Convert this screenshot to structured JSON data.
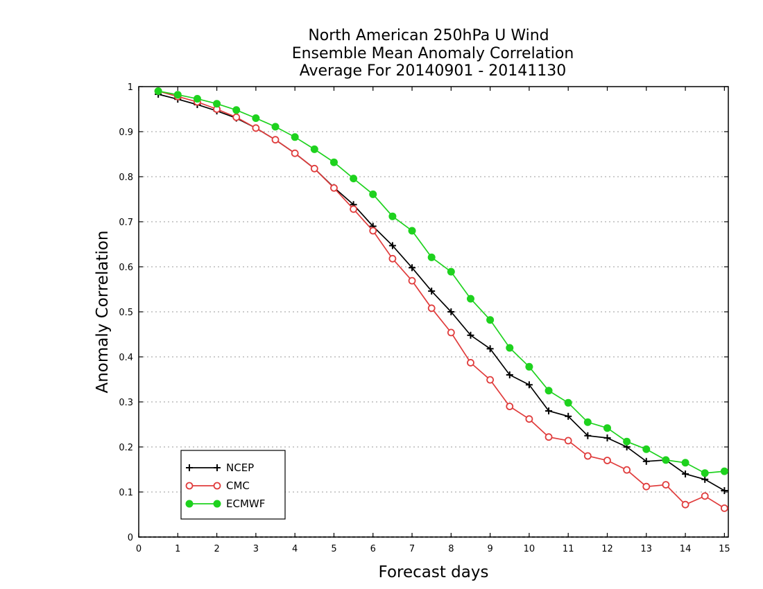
{
  "chart_data": {
    "type": "line",
    "title_lines": [
      "North American 250hPa U Wind",
      "Ensemble Mean Anomaly Correlation",
      "Average For 20140901 - 20141130"
    ],
    "xlabel": "Forecast days",
    "ylabel": "Anomaly Correlation",
    "xlim": [
      0,
      15.1
    ],
    "ylim": [
      0,
      1
    ],
    "x_ticks": [
      0,
      1,
      2,
      3,
      4,
      5,
      6,
      7,
      8,
      9,
      10,
      11,
      12,
      13,
      14,
      15
    ],
    "x_tick_labels": [
      "0",
      "1",
      "2",
      "3",
      "4",
      "5",
      "6",
      "7",
      "8",
      "9",
      "10",
      "11",
      "12",
      "13",
      "14",
      "15"
    ],
    "y_ticks": [
      0,
      0.1,
      0.2,
      0.3,
      0.4,
      0.5,
      0.6,
      0.7,
      0.8,
      0.9,
      1
    ],
    "y_tick_labels": [
      "0",
      "0.1",
      "0.2",
      "0.3",
      "0.4",
      "0.5",
      "0.6",
      "0.7",
      "0.8",
      "0.9",
      "1"
    ],
    "grid": "horizontal dotted",
    "legend_position": "bottom-left",
    "x": [
      0.5,
      1,
      1.5,
      2,
      2.5,
      3,
      3.5,
      4,
      4.5,
      5,
      5.5,
      6,
      6.5,
      7,
      7.5,
      8,
      8.5,
      9,
      9.5,
      10,
      10.5,
      11,
      11.5,
      12,
      12.5,
      13,
      13.5,
      14,
      14.5,
      15
    ],
    "series": [
      {
        "name": "NCEP",
        "color": "#000000",
        "marker": "plus",
        "values": [
          0.983,
          0.972,
          0.96,
          0.946,
          0.93,
          0.908,
          0.882,
          0.852,
          0.818,
          0.776,
          0.738,
          0.69,
          0.647,
          0.598,
          0.546,
          0.5,
          0.448,
          0.418,
          0.36,
          0.338,
          0.28,
          0.268,
          0.225,
          0.22,
          0.2,
          0.168,
          0.171,
          0.14,
          0.128,
          0.103
        ]
      },
      {
        "name": "CMC",
        "color": "#e03c3c",
        "marker": "open-circle",
        "values": [
          0.99,
          0.978,
          0.966,
          0.95,
          0.932,
          0.908,
          0.882,
          0.852,
          0.818,
          0.775,
          0.728,
          0.68,
          0.618,
          0.569,
          0.508,
          0.454,
          0.387,
          0.349,
          0.29,
          0.262,
          0.222,
          0.214,
          0.18,
          0.17,
          0.149,
          0.112,
          0.116,
          0.072,
          0.091,
          0.064
        ]
      },
      {
        "name": "ECMWF",
        "color": "#1ed21e",
        "marker": "filled-circle",
        "values": [
          0.99,
          0.982,
          0.973,
          0.962,
          0.948,
          0.93,
          0.911,
          0.888,
          0.861,
          0.832,
          0.796,
          0.761,
          0.712,
          0.68,
          0.621,
          0.589,
          0.529,
          0.482,
          0.42,
          0.378,
          0.325,
          0.298,
          0.255,
          0.242,
          0.212,
          0.195,
          0.171,
          0.165,
          0.142,
          0.146
        ]
      }
    ]
  }
}
